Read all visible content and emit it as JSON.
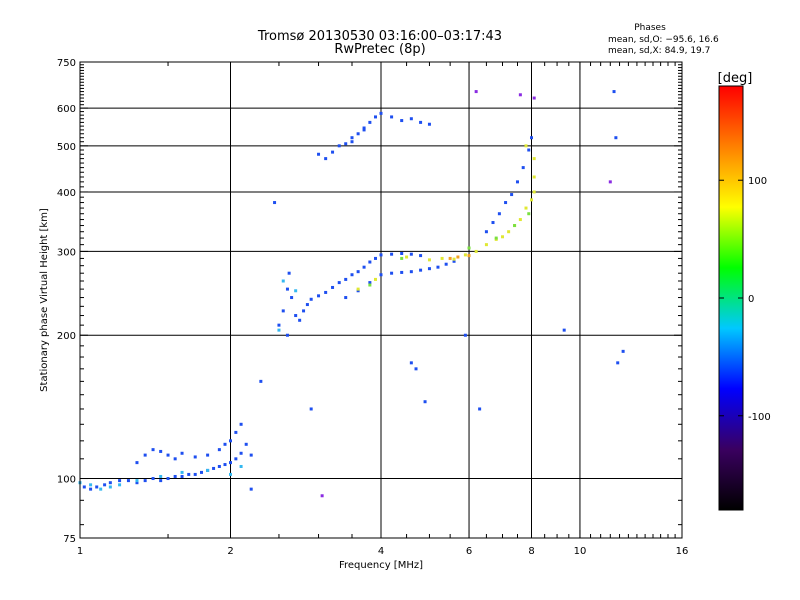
{
  "chart_data": {
    "type": "scatter",
    "title": "Tromsø 20130530 03:16:00–03:17:43",
    "subtitle": "RwPretec (8p)",
    "xlabel": "Frequency [MHz]",
    "ylabel": "Stationary phase Virtual Height [km]",
    "x_scale": "log",
    "y_scale": "log",
    "xlim": [
      1,
      16
    ],
    "ylim": [
      75,
      750
    ],
    "x_ticks": [
      1,
      2,
      4,
      6,
      8,
      10,
      16
    ],
    "y_ticks": [
      75,
      100,
      200,
      300,
      400,
      500,
      600,
      750
    ],
    "grid": true,
    "stats": {
      "heading": "Phases",
      "line_o": "mean, sd,O: −95.6, 16.6",
      "line_x": "mean, sd,X:  84.9, 19.7"
    },
    "colorbar": {
      "label": "[deg]",
      "ticks": [
        100,
        0,
        -100
      ],
      "range": [
        -180,
        180
      ],
      "colors": [
        "#000000",
        "#3a0060",
        "#0000ff",
        "#00c8ff",
        "#00ff00",
        "#ffff00",
        "#ff8000",
        "#ff0000"
      ]
    },
    "series": [
      {
        "color": "#1e4ff0",
        "points": [
          [
            1.02,
            96
          ],
          [
            1.05,
            95
          ],
          [
            1.08,
            96
          ],
          [
            1.12,
            97
          ],
          [
            1.15,
            98
          ],
          [
            1.2,
            99
          ],
          [
            1.25,
            99
          ],
          [
            1.3,
            98
          ],
          [
            1.35,
            99
          ],
          [
            1.4,
            100
          ],
          [
            1.45,
            99
          ],
          [
            1.5,
            100
          ],
          [
            1.55,
            101
          ],
          [
            1.6,
            101
          ],
          [
            1.65,
            102
          ],
          [
            1.7,
            102
          ],
          [
            1.75,
            103
          ],
          [
            1.8,
            104
          ],
          [
            1.85,
            105
          ],
          [
            1.9,
            106
          ],
          [
            1.95,
            107
          ],
          [
            2.0,
            108
          ],
          [
            2.05,
            110
          ],
          [
            2.1,
            113
          ],
          [
            1.3,
            108
          ],
          [
            1.35,
            112
          ],
          [
            1.4,
            115
          ],
          [
            1.45,
            114
          ],
          [
            1.5,
            112
          ],
          [
            1.55,
            110
          ],
          [
            1.6,
            113
          ],
          [
            1.7,
            111
          ],
          [
            1.8,
            112
          ],
          [
            1.9,
            115
          ],
          [
            1.95,
            118
          ],
          [
            2.0,
            120
          ],
          [
            2.05,
            125
          ],
          [
            2.1,
            130
          ],
          [
            2.15,
            118
          ],
          [
            2.2,
            112
          ],
          [
            2.5,
            210
          ],
          [
            2.55,
            225
          ],
          [
            2.6,
            250
          ],
          [
            2.62,
            270
          ],
          [
            2.65,
            240
          ],
          [
            2.7,
            220
          ],
          [
            2.75,
            215
          ],
          [
            2.8,
            225
          ],
          [
            2.85,
            232
          ],
          [
            2.9,
            238
          ],
          [
            3.0,
            242
          ],
          [
            3.1,
            246
          ],
          [
            3.2,
            252
          ],
          [
            3.3,
            258
          ],
          [
            3.4,
            262
          ],
          [
            3.5,
            268
          ],
          [
            3.6,
            272
          ],
          [
            3.7,
            278
          ],
          [
            3.8,
            285
          ],
          [
            3.9,
            290
          ],
          [
            4.0,
            295
          ],
          [
            4.2,
            296
          ],
          [
            4.4,
            297
          ],
          [
            4.6,
            296
          ],
          [
            4.8,
            294
          ],
          [
            3.4,
            240
          ],
          [
            3.6,
            248
          ],
          [
            3.8,
            258
          ],
          [
            4.0,
            268
          ],
          [
            4.2,
            270
          ],
          [
            4.4,
            271
          ],
          [
            4.6,
            272
          ],
          [
            4.8,
            274
          ],
          [
            5.0,
            276
          ],
          [
            5.2,
            278
          ],
          [
            5.4,
            282
          ],
          [
            5.6,
            286
          ],
          [
            3.0,
            480
          ],
          [
            3.1,
            470
          ],
          [
            3.2,
            485
          ],
          [
            3.3,
            500
          ],
          [
            3.4,
            505
          ],
          [
            3.5,
            520
          ],
          [
            3.6,
            530
          ],
          [
            3.7,
            545
          ],
          [
            3.8,
            560
          ],
          [
            3.9,
            575
          ],
          [
            4.0,
            585
          ],
          [
            4.2,
            575
          ],
          [
            4.4,
            565
          ],
          [
            4.6,
            570
          ],
          [
            4.8,
            560
          ],
          [
            5.0,
            555
          ],
          [
            3.5,
            510
          ],
          [
            3.7,
            540
          ],
          [
            6.5,
            330
          ],
          [
            6.7,
            345
          ],
          [
            6.9,
            360
          ],
          [
            7.1,
            380
          ],
          [
            7.3,
            395
          ],
          [
            7.5,
            420
          ],
          [
            7.7,
            450
          ],
          [
            7.9,
            490
          ],
          [
            8.0,
            520
          ],
          [
            2.6,
            200
          ],
          [
            2.45,
            380
          ]
        ]
      },
      {
        "color": "#34b8f0",
        "points": [
          [
            1.0,
            98
          ],
          [
            1.05,
            97
          ],
          [
            1.1,
            95
          ],
          [
            1.15,
            96
          ],
          [
            1.2,
            97
          ],
          [
            1.3,
            99
          ],
          [
            1.45,
            101
          ],
          [
            1.6,
            103
          ],
          [
            1.8,
            104
          ],
          [
            2.0,
            102
          ],
          [
            2.1,
            106
          ],
          [
            2.5,
            205
          ],
          [
            2.55,
            260
          ],
          [
            2.7,
            248
          ]
        ]
      },
      {
        "color": "#e0e832",
        "points": [
          [
            3.6,
            250
          ],
          [
            3.9,
            262
          ],
          [
            4.5,
            292
          ],
          [
            5.0,
            288
          ],
          [
            5.3,
            290
          ],
          [
            5.6,
            289
          ],
          [
            5.9,
            295
          ],
          [
            6.2,
            300
          ],
          [
            6.5,
            310
          ],
          [
            6.8,
            318
          ],
          [
            7.0,
            322
          ],
          [
            7.2,
            330
          ],
          [
            7.4,
            340
          ],
          [
            7.6,
            350
          ],
          [
            7.8,
            370
          ],
          [
            8.0,
            385
          ],
          [
            8.1,
            400
          ],
          [
            8.1,
            430
          ],
          [
            8.1,
            470
          ],
          [
            7.8,
            500
          ]
        ]
      },
      {
        "color": "#7ae040",
        "points": [
          [
            3.8,
            255
          ],
          [
            4.4,
            290
          ],
          [
            6.0,
            305
          ],
          [
            6.8,
            320
          ],
          [
            7.4,
            340
          ],
          [
            7.9,
            360
          ]
        ]
      },
      {
        "color": "#f2a020",
        "points": [
          [
            5.5,
            290
          ],
          [
            5.7,
            292
          ],
          [
            6.0,
            294
          ]
        ]
      },
      {
        "color": "#8a2be2",
        "points": [
          [
            6.2,
            650
          ],
          [
            7.6,
            640
          ],
          [
            8.1,
            630
          ],
          [
            11.5,
            420
          ],
          [
            3.05,
            92
          ]
        ]
      },
      {
        "color": "#1e4ff0",
        "points": [
          [
            2.2,
            95
          ],
          [
            2.3,
            160
          ],
          [
            2.9,
            140
          ],
          [
            4.6,
            175
          ],
          [
            4.7,
            170
          ],
          [
            4.9,
            145
          ],
          [
            5.9,
            200
          ],
          [
            6.3,
            140
          ],
          [
            9.3,
            205
          ],
          [
            11.9,
            175
          ],
          [
            12.2,
            185
          ],
          [
            11.7,
            650
          ],
          [
            11.8,
            520
          ]
        ]
      }
    ]
  }
}
